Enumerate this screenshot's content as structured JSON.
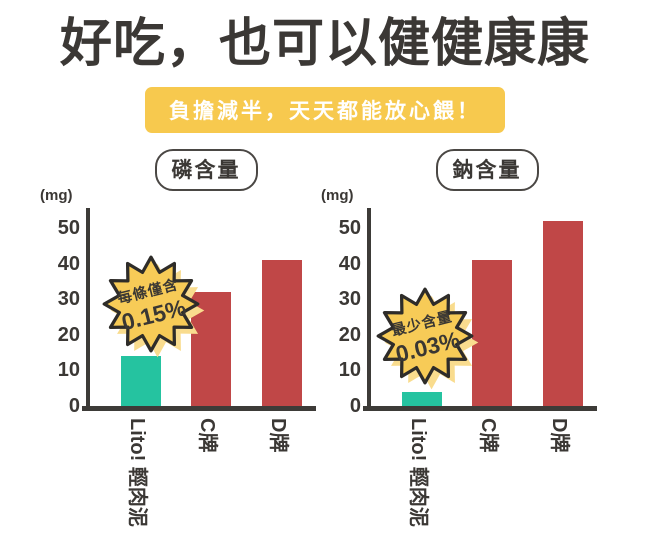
{
  "page": {
    "title": "好吃，也可以健健康康",
    "banner": "負擔減半，天天都能放心餵！"
  },
  "colors": {
    "title_text": "#3b3835",
    "banner_bg": "#f7c94e",
    "banner_text": "#ffffff",
    "axis": "#3d3b38",
    "bar_teal": "#25c3a0",
    "bar_red": "#c04747",
    "burst_fill": "#f7cb57",
    "burst_shadow": "#f9dc8e",
    "burst_outline": "#2e2c29"
  },
  "chart_data": [
    {
      "type": "bar",
      "title": "磷含量",
      "unit_label": "(mg)",
      "categories": [
        "Lito! 輕肉泥",
        "C牌",
        "D牌"
      ],
      "values": [
        14,
        32,
        41
      ],
      "bar_colors": [
        "#25c3a0",
        "#c04747",
        "#c04747"
      ],
      "ylim": [
        0,
        50
      ],
      "yticks": [
        0,
        10,
        20,
        30,
        40,
        50
      ],
      "grid": false,
      "legend": null,
      "badge": {
        "line1": "每條僅含",
        "line2": "0.15%"
      }
    },
    {
      "type": "bar",
      "title": "鈉含量",
      "unit_label": "(mg)",
      "categories": [
        "Lito! 輕肉泥",
        "C牌",
        "D牌"
      ],
      "values": [
        4,
        41,
        52
      ],
      "bar_colors": [
        "#25c3a0",
        "#c04747",
        "#c04747"
      ],
      "ylim": [
        0,
        50
      ],
      "yticks": [
        0,
        10,
        20,
        30,
        40,
        50
      ],
      "grid": false,
      "legend": null,
      "badge": {
        "line1": "最少含量",
        "line2": "0.03%"
      }
    }
  ]
}
